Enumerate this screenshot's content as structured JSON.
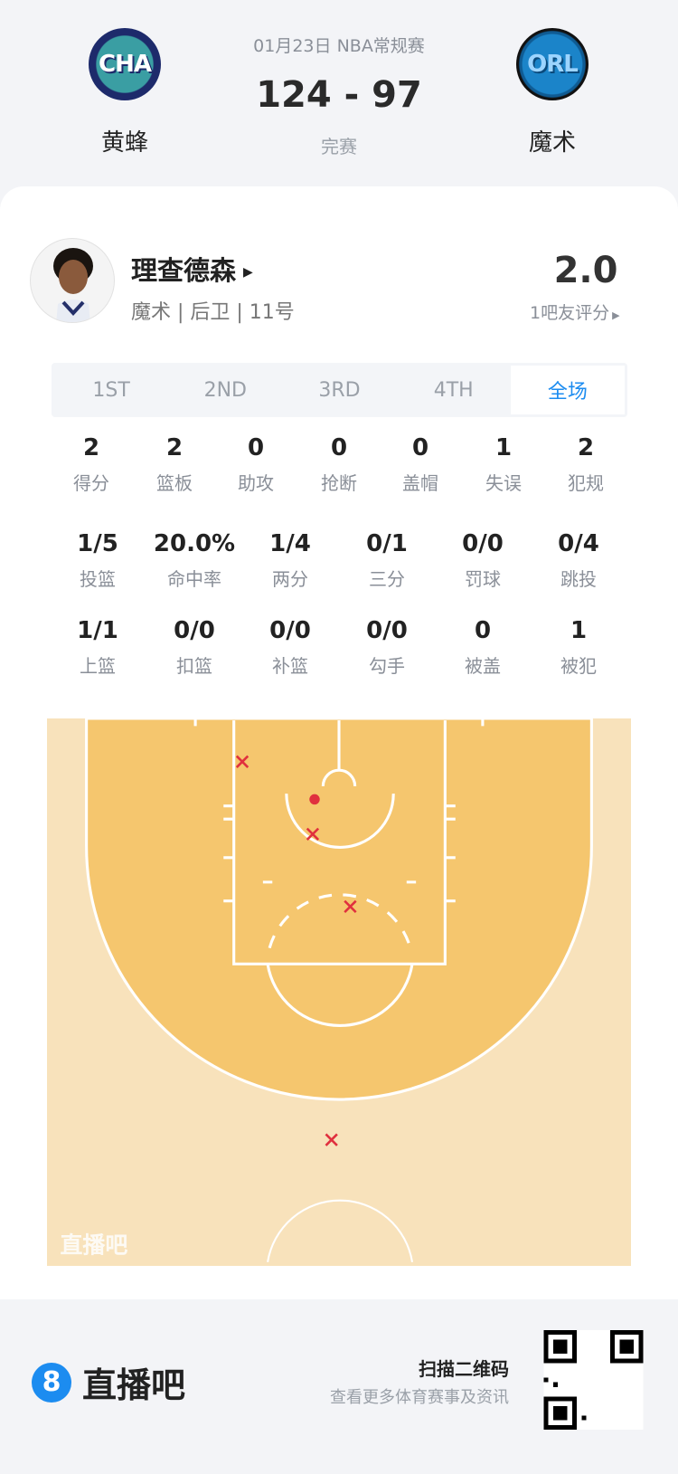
{
  "game": {
    "date_league": "01月23日 NBA常规赛",
    "score": "124 - 97",
    "status": "完赛",
    "home": {
      "abbr": "CHA",
      "name": "黄蜂"
    },
    "away": {
      "abbr": "ORL",
      "name": "魔术"
    }
  },
  "player": {
    "name": "理查德森",
    "meta": "魔术 | 后卫 | 11号",
    "rating": "2.0",
    "rating_label": "1吧友评分"
  },
  "tabs": [
    {
      "label": "1ST"
    },
    {
      "label": "2ND"
    },
    {
      "label": "3RD"
    },
    {
      "label": "4TH"
    },
    {
      "label": "全场",
      "active": true
    }
  ],
  "stats_row1": [
    {
      "v": "2",
      "l": "得分"
    },
    {
      "v": "2",
      "l": "篮板"
    },
    {
      "v": "0",
      "l": "助攻"
    },
    {
      "v": "0",
      "l": "抢断"
    },
    {
      "v": "0",
      "l": "盖帽"
    },
    {
      "v": "1",
      "l": "失误"
    },
    {
      "v": "2",
      "l": "犯规"
    }
  ],
  "stats_row2": [
    {
      "v": "1/5",
      "l": "投篮"
    },
    {
      "v": "20.0%",
      "l": "命中率"
    },
    {
      "v": "1/4",
      "l": "两分"
    },
    {
      "v": "0/1",
      "l": "三分"
    },
    {
      "v": "0/0",
      "l": "罚球"
    },
    {
      "v": "0/4",
      "l": "跳投"
    }
  ],
  "stats_row3": [
    {
      "v": "1/1",
      "l": "上篮"
    },
    {
      "v": "0/0",
      "l": "扣篮"
    },
    {
      "v": "0/0",
      "l": "补篮"
    },
    {
      "v": "0/0",
      "l": "勾手"
    },
    {
      "v": "0",
      "l": "被盖"
    },
    {
      "v": "1",
      "l": "被犯"
    }
  ],
  "shot_chart": {
    "watermark": "直播吧",
    "shots": [
      {
        "result": "miss"
      },
      {
        "result": "made"
      },
      {
        "result": "miss"
      },
      {
        "result": "miss"
      },
      {
        "result": "miss"
      }
    ],
    "colors": {
      "paint": "#f5c66e",
      "outer": "#f8e2bb",
      "mark": "#e0303e"
    }
  },
  "footer": {
    "brand": "直播吧",
    "scan": "扫描二维码",
    "scan_sub": "查看更多体育赛事及资讯"
  },
  "colors": {
    "accent": "#1c8cf0"
  }
}
